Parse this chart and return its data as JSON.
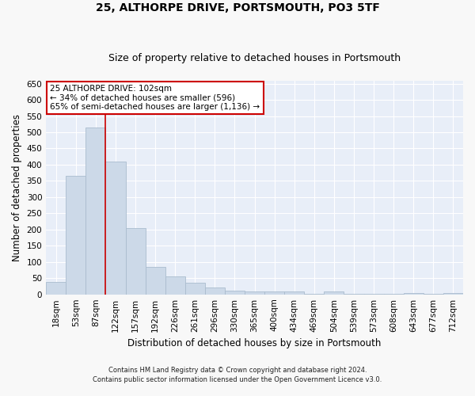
{
  "title": "25, ALTHORPE DRIVE, PORTSMOUTH, PO3 5TF",
  "subtitle": "Size of property relative to detached houses in Portsmouth",
  "xlabel": "Distribution of detached houses by size in Portsmouth",
  "ylabel": "Number of detached properties",
  "categories": [
    "18sqm",
    "53sqm",
    "87sqm",
    "122sqm",
    "157sqm",
    "192sqm",
    "226sqm",
    "261sqm",
    "296sqm",
    "330sqm",
    "365sqm",
    "400sqm",
    "434sqm",
    "469sqm",
    "504sqm",
    "539sqm",
    "573sqm",
    "608sqm",
    "643sqm",
    "677sqm",
    "712sqm"
  ],
  "values": [
    38,
    365,
    515,
    410,
    205,
    85,
    55,
    35,
    22,
    12,
    8,
    8,
    8,
    2,
    8,
    2,
    2,
    2,
    5,
    2,
    5
  ],
  "bar_color": "#ccd9e8",
  "bar_edge_color": "#aabcce",
  "plot_bg_color": "#e8eef8",
  "grid_color": "#ffffff",
  "red_line_x": 2.5,
  "annotation_text_line1": "25 ALTHORPE DRIVE: 102sqm",
  "annotation_text_line2": "← 34% of detached houses are smaller (596)",
  "annotation_text_line3": "65% of semi-detached houses are larger (1,136) →",
  "annotation_box_color": "#ffffff",
  "annotation_box_edge": "#cc0000",
  "ylim": [
    0,
    660
  ],
  "yticks": [
    0,
    50,
    100,
    150,
    200,
    250,
    300,
    350,
    400,
    450,
    500,
    550,
    600,
    650
  ],
  "footer_line1": "Contains HM Land Registry data © Crown copyright and database right 2024.",
  "footer_line2": "Contains public sector information licensed under the Open Government Licence v3.0.",
  "title_fontsize": 10,
  "subtitle_fontsize": 9,
  "xlabel_fontsize": 8.5,
  "ylabel_fontsize": 8.5,
  "tick_fontsize": 7.5,
  "annotation_fontsize": 7.5,
  "footer_fontsize": 6.0,
  "fig_bg_color": "#f8f8f8"
}
